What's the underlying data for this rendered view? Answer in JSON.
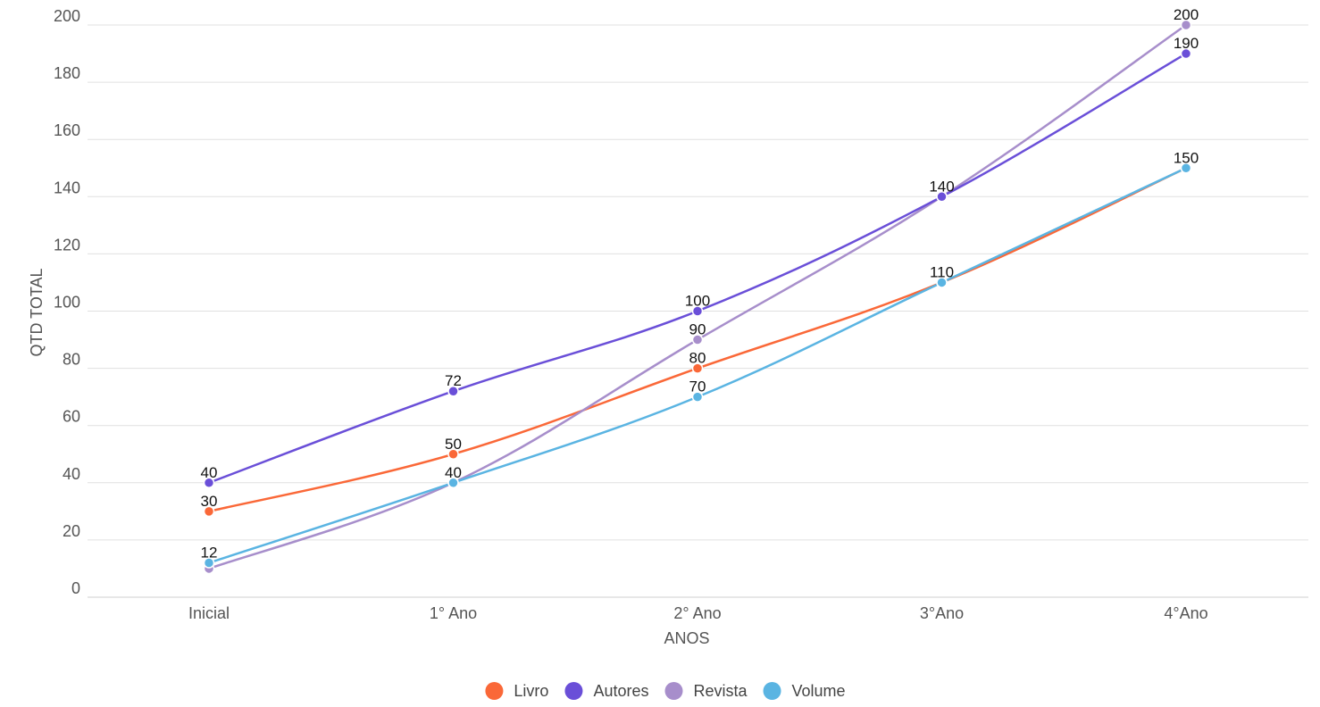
{
  "chart_data": {
    "type": "line",
    "title": "",
    "xlabel": "ANOS",
    "ylabel": "QTD TOTAL",
    "categories": [
      "Inicial",
      "1° Ano",
      "2° Ano",
      "3°Ano",
      "4°Ano"
    ],
    "ylim": [
      0,
      200
    ],
    "yticks": [
      0,
      20,
      40,
      60,
      80,
      100,
      120,
      140,
      160,
      180,
      200
    ],
    "grid": true,
    "legend_position": "bottom-center",
    "series": [
      {
        "name": "Livro",
        "color": "#fa6838",
        "values": [
          30,
          50,
          80,
          110,
          150
        ],
        "labels": [
          "30",
          "50",
          "80",
          "",
          ""
        ]
      },
      {
        "name": "Autores",
        "color": "#6a4fd8",
        "values": [
          40,
          72,
          100,
          140,
          190
        ],
        "labels": [
          "40",
          "72",
          "100",
          "",
          "190"
        ]
      },
      {
        "name": "Revista",
        "color": "#a78ecb",
        "values": [
          10,
          40,
          90,
          140,
          200
        ],
        "labels": [
          "",
          "",
          "90",
          "140",
          "200"
        ]
      },
      {
        "name": "Volume",
        "color": "#5ab4e2",
        "values": [
          12,
          40,
          70,
          110,
          150
        ],
        "labels": [
          "12",
          "40",
          "70",
          "110",
          "150"
        ]
      }
    ]
  }
}
